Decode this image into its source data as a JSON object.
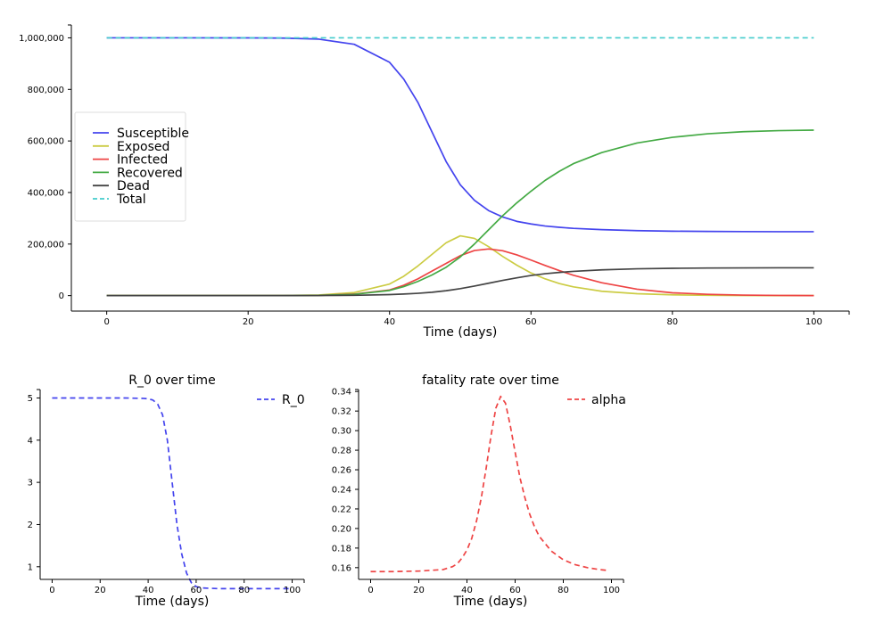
{
  "chart_data": [
    {
      "type": "line",
      "title": "",
      "xlabel": "Time (days)",
      "ylabel": "",
      "xlim": [
        -5,
        105
      ],
      "ylim": [
        -60000,
        1050000
      ],
      "xticks": [
        0,
        20,
        40,
        60,
        80,
        100
      ],
      "xtick_labels": [
        "0",
        "20",
        "40",
        "60",
        "80",
        "100"
      ],
      "yticks": [
        0,
        200000,
        400000,
        600000,
        800000,
        1000000
      ],
      "ytick_labels": [
        "0",
        "200,000",
        "400,000",
        "600,000",
        "800,000",
        "1,000,000"
      ],
      "legend": "center-left",
      "grid": false,
      "x": [
        0,
        10,
        20,
        25,
        30,
        35,
        40,
        42,
        44,
        46,
        48,
        50,
        52,
        54,
        56,
        58,
        60,
        62,
        64,
        66,
        70,
        75,
        80,
        85,
        90,
        95,
        100
      ],
      "series": [
        {
          "name": "Susceptible",
          "color": "#4444ee",
          "dash": false,
          "values": [
            1000000,
            1000000,
            999800,
            999000,
            995000,
            975000,
            905000,
            840000,
            750000,
            635000,
            520000,
            430000,
            370000,
            330000,
            305000,
            288000,
            278000,
            270000,
            265000,
            261000,
            256000,
            252000,
            250000,
            249000,
            248500,
            248000,
            248000
          ]
        },
        {
          "name": "Exposed",
          "color": "#cccc44",
          "dash": false,
          "values": [
            0,
            0,
            100,
            500,
            2500,
            12000,
            45000,
            75000,
            115000,
            160000,
            205000,
            232000,
            222000,
            190000,
            152000,
            118000,
            88000,
            65000,
            47000,
            34000,
            17000,
            7500,
            3000,
            1200,
            400,
            100,
            0
          ]
        },
        {
          "name": "Infected",
          "color": "#ee4444",
          "dash": false,
          "values": [
            0,
            0,
            50,
            200,
            1000,
            6000,
            22000,
            40000,
            65000,
            95000,
            125000,
            155000,
            175000,
            181000,
            174000,
            158000,
            138000,
            117000,
            97000,
            79000,
            50000,
            25000,
            11000,
            5000,
            2000,
            700,
            200
          ]
        },
        {
          "name": "Recovered",
          "color": "#44aa44",
          "dash": false,
          "values": [
            0,
            0,
            50,
            200,
            1000,
            5000,
            20000,
            35000,
            55000,
            80000,
            110000,
            150000,
            200000,
            255000,
            310000,
            360000,
            405000,
            447000,
            482000,
            512000,
            555000,
            592000,
            614000,
            628000,
            636000,
            640000,
            642000
          ]
        },
        {
          "name": "Dead",
          "color": "#444444",
          "dash": false,
          "values": [
            0,
            0,
            0,
            0,
            300,
            1200,
            4000,
            6000,
            9000,
            13000,
            19000,
            27000,
            37000,
            48000,
            59000,
            69000,
            78000,
            85000,
            90000,
            94000,
            100000,
            104000,
            106000,
            107000,
            107500,
            108000,
            108000
          ]
        },
        {
          "name": "Total",
          "color": "#44cccc",
          "dash": true,
          "values": [
            1000000,
            1000000,
            1000000,
            1000000,
            1000000,
            1000000,
            1000000,
            1000000,
            1000000,
            1000000,
            1000000,
            1000000,
            1000000,
            1000000,
            1000000,
            1000000,
            1000000,
            1000000,
            1000000,
            1000000,
            1000000,
            1000000,
            1000000,
            1000000,
            1000000,
            1000000,
            1000000
          ]
        }
      ]
    },
    {
      "type": "line",
      "title": "R_0 over time",
      "xlabel": "Time (days)",
      "ylabel": "",
      "xlim": [
        -5,
        105
      ],
      "ylim": [
        0.7,
        5.2
      ],
      "xticks": [
        0,
        20,
        40,
        60,
        80,
        100
      ],
      "xtick_labels": [
        "0",
        "20",
        "40",
        "60",
        "80",
        "100"
      ],
      "yticks": [
        1,
        2,
        3,
        4,
        5
      ],
      "ytick_labels": [
        "1",
        "2",
        "3",
        "4",
        "5"
      ],
      "legend": "top-right",
      "grid": false,
      "x": [
        0,
        10,
        20,
        30,
        38,
        40,
        42,
        44,
        46,
        48,
        50,
        52,
        54,
        56,
        58,
        60,
        62,
        65,
        70,
        80,
        90,
        100
      ],
      "series": [
        {
          "name": "R_0",
          "color": "#4444ee",
          "dash": true,
          "values": [
            5.0,
            5.0,
            5.0,
            5.0,
            4.99,
            4.98,
            4.95,
            4.85,
            4.6,
            4.0,
            3.0,
            2.0,
            1.3,
            0.85,
            0.62,
            0.53,
            0.5,
            0.49,
            0.48,
            0.48,
            0.48,
            0.48
          ]
        }
      ]
    },
    {
      "type": "line",
      "title": "fatality rate over time",
      "xlabel": "Time (days)",
      "ylabel": "",
      "xlim": [
        -5,
        105
      ],
      "ylim": [
        0.148,
        0.342
      ],
      "xticks": [
        0,
        20,
        40,
        60,
        80,
        100
      ],
      "xtick_labels": [
        "0",
        "20",
        "40",
        "60",
        "80",
        "100"
      ],
      "yticks": [
        0.16,
        0.18,
        0.2,
        0.22,
        0.24,
        0.26,
        0.28,
        0.3,
        0.32,
        0.34
      ],
      "ytick_labels": [
        "0.16",
        "0.18",
        "0.20",
        "0.22",
        "0.24",
        "0.26",
        "0.28",
        "0.30",
        "0.32",
        "0.34"
      ],
      "legend": "top-right",
      "grid": false,
      "x": [
        0,
        10,
        20,
        30,
        34,
        36,
        38,
        40,
        42,
        44,
        46,
        48,
        50,
        52,
        54,
        56,
        58,
        60,
        62,
        64,
        66,
        68,
        70,
        75,
        80,
        85,
        90,
        95,
        99
      ],
      "series": [
        {
          "name": "alpha",
          "color": "#ee4444",
          "dash": true,
          "values": [
            0.156,
            0.156,
            0.1565,
            0.158,
            0.161,
            0.164,
            0.17,
            0.178,
            0.19,
            0.208,
            0.232,
            0.262,
            0.295,
            0.323,
            0.335,
            0.328,
            0.305,
            0.278,
            0.252,
            0.232,
            0.215,
            0.202,
            0.192,
            0.177,
            0.168,
            0.163,
            0.16,
            0.158,
            0.157
          ]
        }
      ]
    }
  ]
}
